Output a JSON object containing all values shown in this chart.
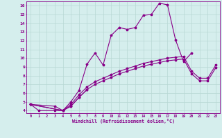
{
  "xlabel": "Windchill (Refroidissement éolien,°C)",
  "xlim": [
    -0.5,
    23.5
  ],
  "ylim": [
    3.7,
    16.5
  ],
  "xticks": [
    0,
    1,
    2,
    3,
    4,
    5,
    6,
    7,
    8,
    9,
    10,
    11,
    12,
    13,
    14,
    15,
    16,
    17,
    18,
    19,
    20,
    21,
    22,
    23
  ],
  "yticks": [
    4,
    5,
    6,
    7,
    8,
    9,
    10,
    11,
    12,
    13,
    14,
    15,
    16
  ],
  "background_color": "#d5eeed",
  "line_color": "#880088",
  "grid_color": "#b8d8d4",
  "series": [
    [
      4.7,
      4.0,
      null,
      4.0,
      4.0,
      5.0,
      6.3,
      9.3,
      10.6,
      9.2,
      12.6,
      13.5,
      13.3,
      13.5,
      14.9,
      15.0,
      16.3,
      16.1,
      12.1,
      9.6,
      10.6,
      null,
      null,
      null
    ],
    [
      4.7,
      null,
      null,
      4.5,
      4.0,
      4.5,
      5.5,
      6.4,
      null,
      null,
      null,
      null,
      null,
      null,
      null,
      null,
      null,
      null,
      null,
      null,
      null,
      null,
      null,
      null
    ],
    [
      4.7,
      null,
      null,
      null,
      4.0,
      4.5,
      5.5,
      6.4,
      7.0,
      7.4,
      7.8,
      8.2,
      8.5,
      8.8,
      9.1,
      9.3,
      9.5,
      9.7,
      9.8,
      9.9,
      8.2,
      7.4,
      7.4,
      8.9
    ],
    [
      4.7,
      null,
      null,
      null,
      4.0,
      4.7,
      5.8,
      6.7,
      7.3,
      7.7,
      8.1,
      8.5,
      8.8,
      9.1,
      9.4,
      9.6,
      9.8,
      10.0,
      10.1,
      10.2,
      8.5,
      7.7,
      7.7,
      9.2
    ]
  ]
}
